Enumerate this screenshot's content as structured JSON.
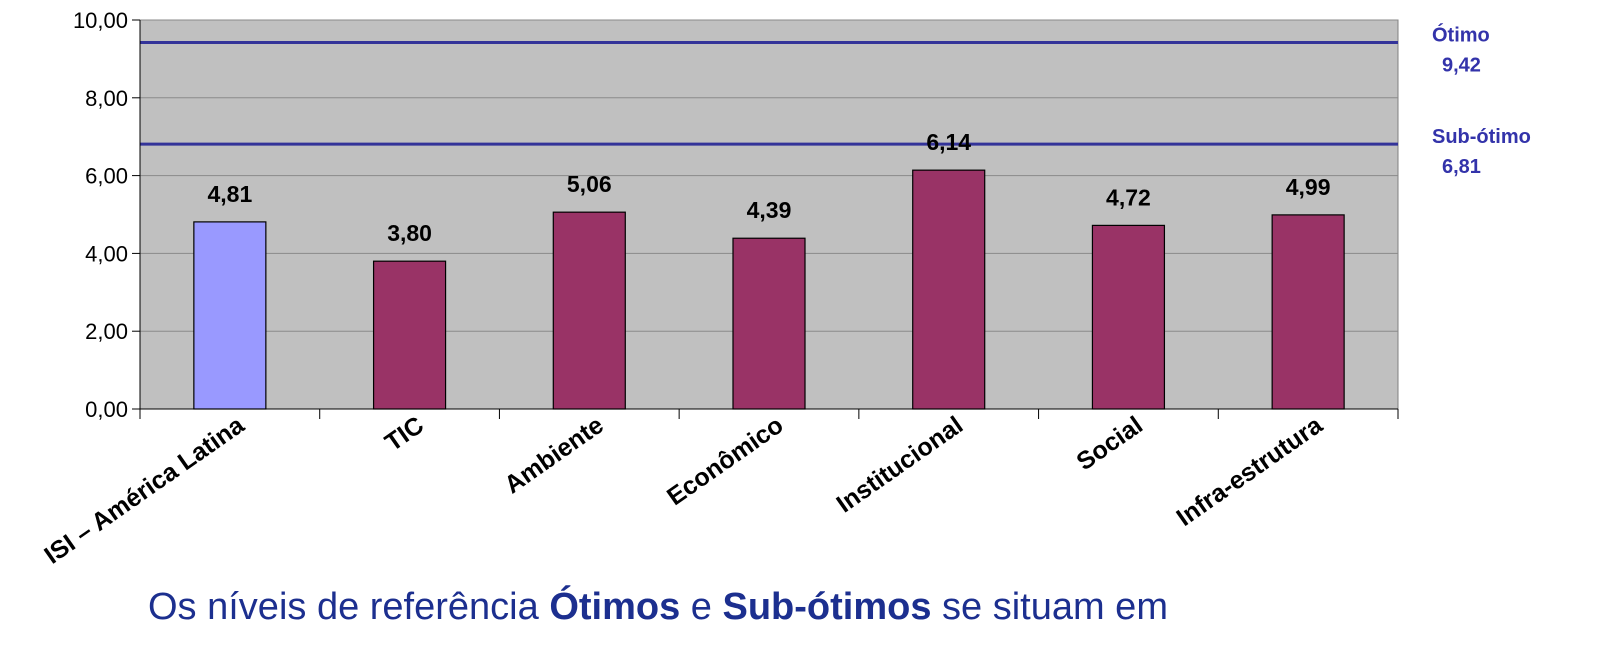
{
  "chart_data": {
    "type": "bar",
    "categories": [
      "ISI – América Latina",
      "TIC",
      "Ambiente",
      "Econômico",
      "Institucional",
      "Social",
      "Infra-estrutura"
    ],
    "values": [
      4.81,
      3.8,
      5.06,
      4.39,
      6.14,
      4.72,
      4.99
    ],
    "value_labels": [
      "4,81",
      "3,80",
      "5,06",
      "4,39",
      "6,14",
      "4,72",
      "4,99"
    ],
    "ylim": [
      0,
      10
    ],
    "yticks": [
      0,
      2,
      4,
      6,
      8,
      10
    ],
    "ytick_labels": [
      "0,00",
      "2,00",
      "4,00",
      "6,00",
      "8,00",
      "10,00"
    ],
    "grid": true,
    "reference_lines": [
      {
        "name": "Ótimo",
        "value": 9.42,
        "label": "9,42"
      },
      {
        "name": "Sub-ótimo",
        "value": 6.81,
        "label": "6,81"
      }
    ],
    "colors": {
      "plot_background": "#c0c0c0",
      "highlight_bar": "#9999ff",
      "bar": "#993366",
      "reference_line": "#333399",
      "reference_text": "#3333aa"
    }
  },
  "caption": {
    "part1": "Os níveis de referência ",
    "bold1": "Ótimos",
    "part2": " e ",
    "bold2": "Sub-ótimos",
    "part3": " se situam em"
  }
}
